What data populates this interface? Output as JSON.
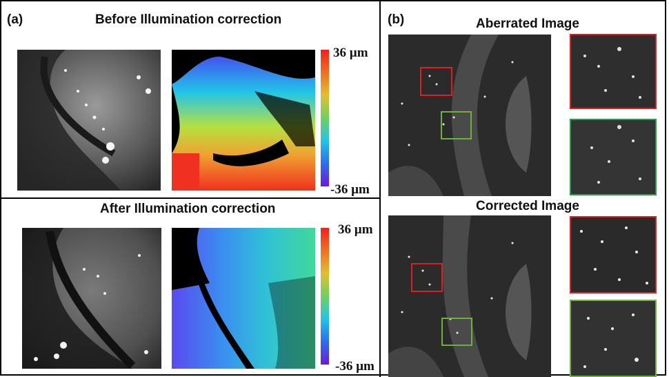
{
  "panel_a": {
    "label": "(a)",
    "before_title": "Before Illumination correction",
    "after_title": "After Illumination correction",
    "colorbar_top": {
      "max_label": "36 µm",
      "min_label": "-36 µm"
    },
    "colorbar_bottom": {
      "max_label": "36 µm",
      "min_label": "-36 µm"
    }
  },
  "panel_b": {
    "label": "(b)",
    "aberrated_title": "Aberrated Image",
    "corrected_title": "Corrected Image",
    "roi_colors": {
      "red": "#e02020",
      "green": "#70b040"
    }
  },
  "colors": {
    "colormap": [
      "#6a1bd8",
      "#2f6cf0",
      "#22c4e8",
      "#40d89a",
      "#b8e040",
      "#f0b030",
      "#f04020"
    ]
  }
}
